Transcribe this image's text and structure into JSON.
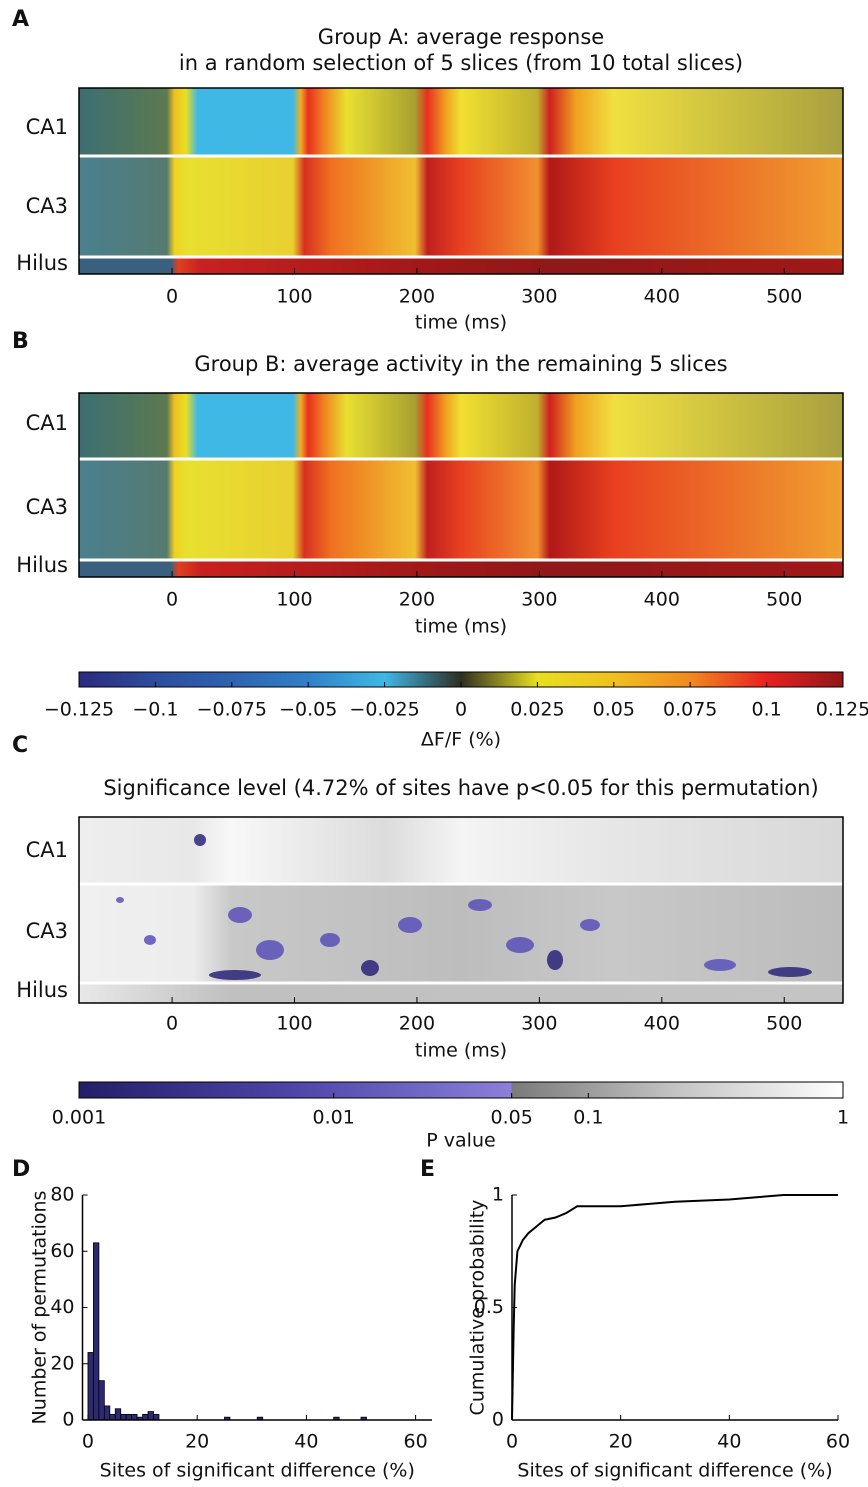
{
  "chart_data": [
    {
      "type": "heatmap",
      "panel": "A",
      "title": [
        "Group A: average response",
        "in a random selection of 5 slices (from 10 total slices)"
      ],
      "rows": [
        "CA1",
        "CA3",
        "Hilus"
      ],
      "xlabel": "time (ms)",
      "xlim": [
        -76,
        548
      ],
      "xticks": [
        0,
        100,
        200,
        300,
        400,
        500
      ]
    },
    {
      "type": "heatmap",
      "panel": "B",
      "title": [
        "Group B: average activity in the remaining 5 slices"
      ],
      "rows": [
        "CA1",
        "CA3",
        "Hilus"
      ],
      "xlabel": "time (ms)",
      "xlim": [
        -76,
        548
      ],
      "xticks": [
        0,
        100,
        200,
        300,
        400,
        500
      ]
    },
    {
      "type": "colorbar",
      "xlim": [
        -0.125,
        0.125
      ],
      "xticks": [
        {
          "value": -0.125,
          "label": "−0.125"
        },
        {
          "value": -0.1,
          "label": "−0.1"
        },
        {
          "value": -0.075,
          "label": "−0.075"
        },
        {
          "value": -0.05,
          "label": "−0.05"
        },
        {
          "value": -0.025,
          "label": "−0.025"
        },
        0,
        0.025,
        0.05,
        0.075,
        0.1,
        0.125
      ],
      "xlabel": "ΔF/F (%)",
      "colors": [
        "#2b2a80",
        "#2d4d9e",
        "#2f62b0",
        "#3080c8",
        "#3fb8e6",
        "#2e2e22",
        "#e8e020",
        "#f0c020",
        "#f08a20",
        "#e82020",
        "#901818"
      ]
    },
    {
      "type": "heatmap",
      "panel": "C",
      "title": [
        "Significance level (4.72% of sites have p<0.05 for this permutation)"
      ],
      "rows": [
        "CA1",
        "CA3",
        "Hilus"
      ],
      "xlabel": "time (ms)",
      "xlim": [
        -76,
        548
      ],
      "xticks": [
        0,
        100,
        200,
        300,
        400,
        500
      ]
    },
    {
      "type": "colorbar",
      "log": true,
      "xlim": [
        0.001,
        1
      ],
      "xticks": [
        0.001,
        0.01,
        0.05,
        0.1,
        1
      ],
      "xlabel": "P value",
      "threshold": 0.05,
      "colors_below": [
        "#241f68",
        "#4e46a8",
        "#8a80d8"
      ],
      "colors_above": [
        "#7a7a7a",
        "#c4c4c4",
        "#ffffff"
      ]
    },
    {
      "type": "histogram",
      "panel": "D",
      "bins": [
        0,
        1,
        2,
        3,
        4,
        5,
        6,
        7,
        8,
        9,
        10,
        11,
        12,
        13,
        14,
        15,
        16,
        17,
        18,
        19,
        20,
        21,
        22,
        23,
        24,
        25,
        26,
        27,
        28,
        29,
        30,
        31,
        32,
        33,
        34,
        35,
        36,
        37,
        38,
        39,
        40,
        41,
        42,
        43,
        44,
        45,
        46,
        47,
        48,
        49,
        50,
        51,
        52,
        53,
        54,
        55,
        56,
        57,
        58,
        59,
        60
      ],
      "counts": [
        24,
        63,
        14,
        5,
        2,
        4,
        2,
        2,
        2,
        1,
        2,
        3,
        2,
        0,
        0,
        0,
        0,
        0,
        0,
        0,
        0,
        0,
        0,
        0,
        0,
        1,
        0,
        0,
        0,
        0,
        0,
        1,
        0,
        0,
        0,
        0,
        0,
        0,
        0,
        0,
        0,
        0,
        0,
        0,
        0,
        1,
        0,
        0,
        0,
        0,
        1,
        0,
        0,
        0,
        0,
        0,
        0,
        0,
        0,
        0
      ],
      "color": "#2e2a70",
      "xlim": [
        -1,
        63
      ],
      "xticks": [
        0,
        20,
        40,
        60
      ],
      "ylim": [
        0,
        80
      ],
      "yticks": [
        0,
        20,
        40,
        60,
        80
      ],
      "xlabel": "Sites of significant difference (%)",
      "ylabel": "Number of permutations"
    },
    {
      "type": "line",
      "panel": "E",
      "x": [
        0,
        0.3,
        0.5,
        1,
        2,
        3,
        4,
        5,
        6,
        8,
        10,
        12,
        20,
        25,
        30,
        40,
        45,
        50,
        60
      ],
      "y": [
        0,
        0.4,
        0.6,
        0.75,
        0.8,
        0.83,
        0.85,
        0.87,
        0.89,
        0.9,
        0.92,
        0.95,
        0.95,
        0.96,
        0.97,
        0.98,
        0.99,
        1,
        1
      ],
      "color": "#000000",
      "xlim": [
        0,
        60
      ],
      "xticks": [
        0,
        20,
        40,
        60
      ],
      "ylim": [
        0,
        1
      ],
      "yticks": [
        0,
        0.5,
        1
      ],
      "xlabel": "Sites of significant difference (%)",
      "ylabel": "Cumulative probability"
    }
  ]
}
